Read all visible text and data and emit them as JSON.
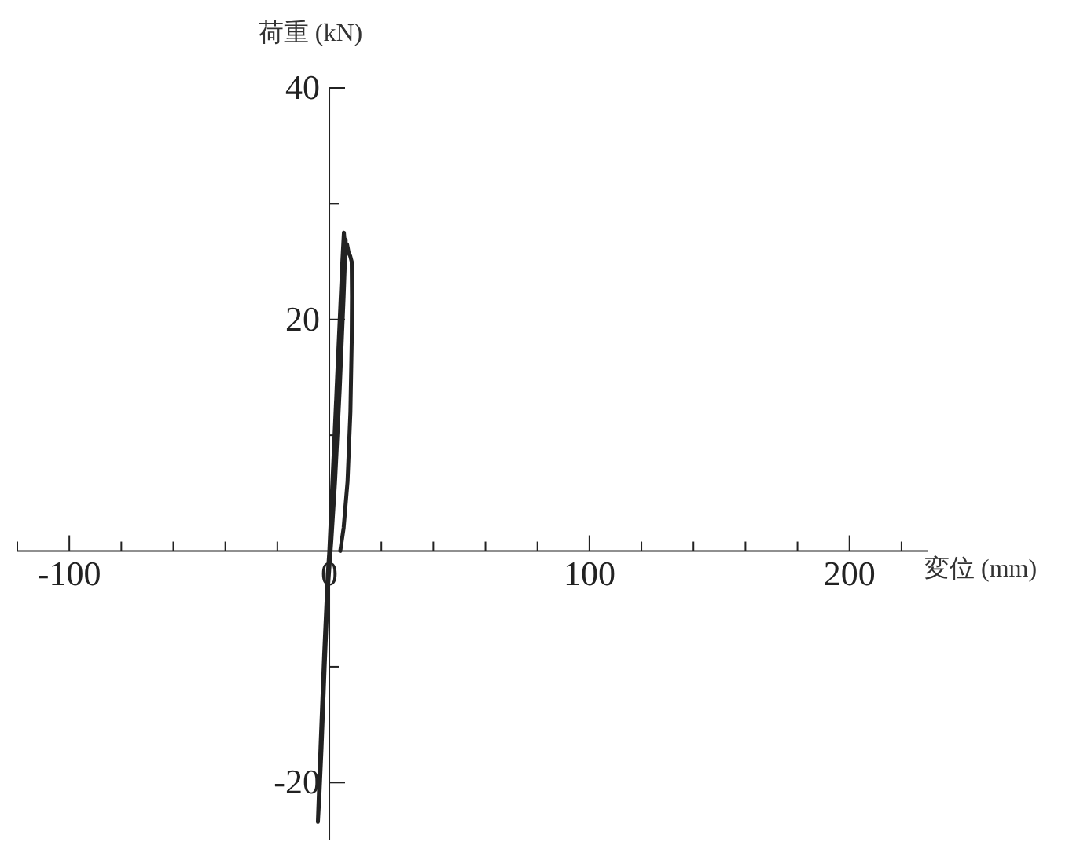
{
  "chart_data": {
    "type": "line",
    "xlabel": "変位 (mm)",
    "ylabel": "荷重 (kN)",
    "xlim": [
      -120,
      230
    ],
    "ylim": [
      -25,
      40
    ],
    "xticks": [
      {
        "value": -120,
        "label": null
      },
      -100,
      {
        "value": -80,
        "label": null
      },
      {
        "value": -60,
        "label": null
      },
      {
        "value": -40,
        "label": null
      },
      {
        "value": -20,
        "label": null
      },
      0,
      {
        "value": 20,
        "label": null
      },
      {
        "value": 40,
        "label": null
      },
      {
        "value": 60,
        "label": null
      },
      {
        "value": 80,
        "label": null
      },
      100,
      {
        "value": 120,
        "label": null
      },
      {
        "value": 140,
        "label": null
      },
      {
        "value": 160,
        "label": null
      },
      {
        "value": 180,
        "label": null
      },
      200,
      {
        "value": 220,
        "label": null
      }
    ],
    "yticks": [
      -20,
      {
        "value": -10,
        "label": null
      },
      {
        "value": 10,
        "label": null
      },
      20,
      {
        "value": 30,
        "label": null
      },
      40
    ],
    "line_style": "solid",
    "series": [
      {
        "color": "#222222",
        "x": [
          0,
          0.6,
          1.2,
          0.6,
          0,
          -0.6,
          -1.2,
          -0.6,
          0,
          1.2,
          2,
          2.6,
          1.8,
          0.6,
          -0.4,
          -1.4,
          -2,
          -1.2,
          0,
          1.5,
          2.8,
          3.8,
          4.3,
          3,
          1.5,
          0.5,
          -0.8,
          -2,
          -2.8,
          -3.3,
          -2.4,
          -1,
          0,
          1.6,
          3,
          4.2,
          5,
          5.6,
          5.9,
          6.3,
          5.5,
          4,
          2.2,
          0.8,
          -0.5,
          -1.8,
          -3,
          -3.8,
          -4.4,
          -3.4,
          -2,
          -0.6,
          0.5,
          2,
          3.5,
          5,
          6.2,
          6.8,
          7.4,
          8,
          8.6,
          8.7,
          8.6,
          8.1,
          7,
          5.5,
          4.2
        ],
        "values": [
          0,
          3,
          6,
          2,
          0,
          -3,
          -6,
          -2,
          0,
          6,
          10,
          13,
          8,
          2,
          -2,
          -7,
          -10,
          -5,
          0,
          7,
          14,
          19,
          21,
          13,
          5,
          1,
          -4,
          -11,
          -15,
          -18,
          -12,
          -4,
          0,
          7,
          15,
          21,
          25,
          27.5,
          26.6,
          26.9,
          22,
          14,
          6,
          1,
          -3,
          -10,
          -17,
          -21,
          -23.4,
          -17,
          -9,
          -2,
          1,
          8,
          16,
          22,
          25.5,
          26.5,
          25.8,
          25.5,
          25,
          22,
          18,
          12,
          6,
          2,
          0
        ]
      }
    ]
  }
}
